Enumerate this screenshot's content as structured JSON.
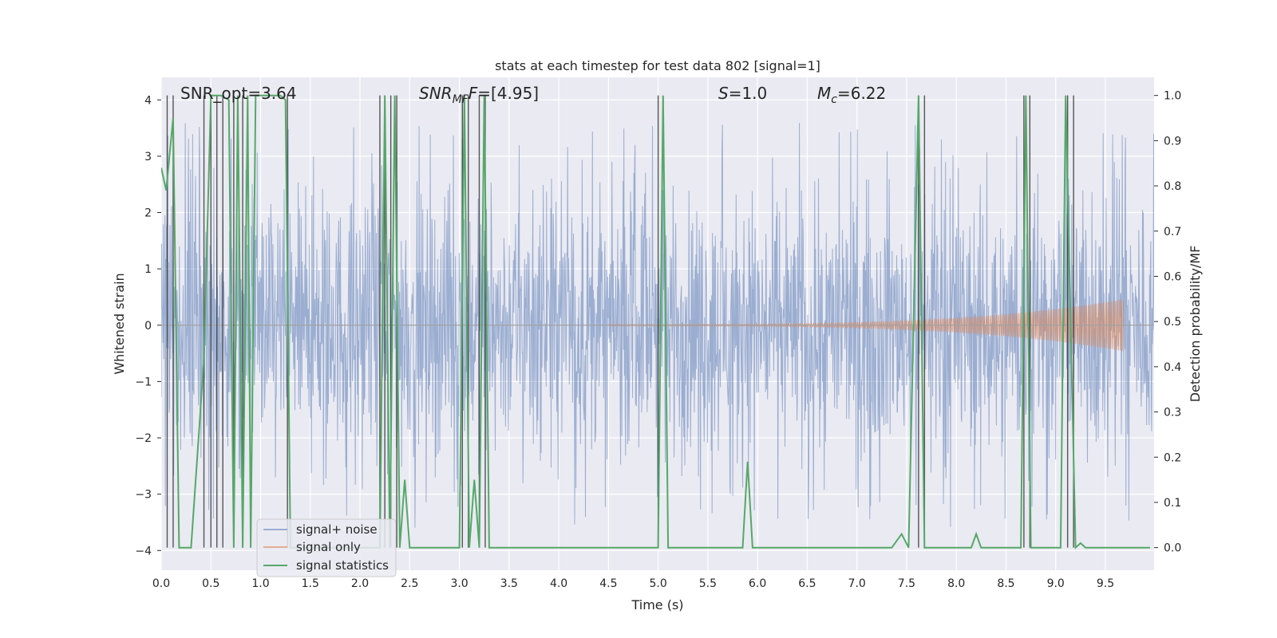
{
  "chart_data": {
    "type": "line",
    "title": "stats at each timestep for test data 802 [signal=1]",
    "xlabel": "Time (s)",
    "ylabel_left": "Whitened strain",
    "ylabel_right": "Detection probability/MF",
    "xlim": [
      0.0,
      9.99
    ],
    "ylim_left": [
      -4.35,
      4.4
    ],
    "ylim_right": [
      -0.05,
      1.04
    ],
    "xticks": [
      "0.0",
      "0.5",
      "1.0",
      "1.5",
      "2.0",
      "2.5",
      "3.0",
      "3.5",
      "4.0",
      "4.5",
      "5.0",
      "5.5",
      "6.0",
      "6.5",
      "7.0",
      "7.5",
      "8.0",
      "8.5",
      "9.0",
      "9.5"
    ],
    "yticks_left": [
      "4",
      "3",
      "2",
      "1",
      "0",
      "−1",
      "−2",
      "−3",
      "−4"
    ],
    "yticks_right": [
      "1.0",
      "0.9",
      "0.8",
      "0.7",
      "0.6",
      "0.5",
      "0.4",
      "0.3",
      "0.2",
      "0.1",
      "0.0"
    ],
    "grid": true,
    "legend_position": "lower-left",
    "annotations": {
      "snr_opt": "SNR_opt=3.64",
      "snr_mf_sym": "SNR",
      "snr_mf_sub": "MF",
      "snr_mf_val": "=[4.95]",
      "s_sym": "S",
      "s_val": "=1.0",
      "mc_sym": "M",
      "mc_sub": "c",
      "mc_val": "=6.22"
    },
    "series": [
      {
        "name": "signal+ noise",
        "color": "#4c72b0",
        "amplitude_envelope": 2.2,
        "peak_range": [
          -3.9,
          3.6
        ]
      },
      {
        "name": "signal only",
        "color": "#dd8452",
        "chirp_start": 4.5,
        "chirp_end": 9.68,
        "peak_amplitude": 0.45
      },
      {
        "name": "signal statistics",
        "color": "#55a868",
        "x": [
          0.0,
          0.05,
          0.12,
          0.18,
          0.3,
          0.4,
          0.43,
          0.5,
          0.55,
          0.6,
          0.68,
          0.73,
          0.77,
          0.82,
          0.87,
          0.9,
          0.95,
          1.0,
          1.05,
          1.15,
          1.2,
          1.25,
          1.3,
          1.35,
          2.2,
          2.25,
          2.3,
          2.35,
          2.4,
          2.45,
          2.5,
          3.0,
          3.05,
          3.1,
          3.15,
          3.2,
          3.25,
          3.3,
          3.35,
          3.5,
          5.0,
          5.05,
          5.1,
          5.85,
          5.9,
          5.95,
          6.5,
          7.35,
          7.45,
          7.52,
          7.62,
          7.68,
          7.73,
          7.85,
          8.15,
          8.2,
          8.25,
          8.65,
          8.7,
          8.75,
          8.8,
          8.85,
          9.05,
          9.1,
          9.2,
          9.25,
          9.3,
          9.5,
          9.95
        ],
        "y": [
          0.84,
          0.79,
          0.95,
          0.0,
          0.0,
          0.32,
          0.42,
          1.0,
          1.0,
          1.0,
          0.99,
          0.0,
          1.0,
          0.0,
          1.0,
          0.0,
          1.0,
          1.0,
          1.0,
          1.0,
          1.0,
          0.99,
          0.0,
          0.0,
          0.0,
          1.0,
          0.0,
          1.0,
          0.0,
          0.15,
          0.0,
          0.0,
          1.0,
          0.0,
          0.15,
          0.0,
          1.0,
          0.0,
          0.0,
          0.0,
          0.0,
          1.0,
          0.0,
          0.0,
          0.19,
          0.0,
          0.0,
          0.0,
          0.03,
          0.0,
          1.0,
          0.0,
          0.0,
          0.0,
          0.0,
          0.03,
          0.0,
          0.0,
          1.0,
          0.0,
          0.0,
          0.0,
          0.0,
          1.0,
          0.0,
          0.01,
          0.0,
          0.0,
          0.0
        ]
      }
    ],
    "vertical_markers": [
      0.06,
      0.12,
      0.43,
      0.5,
      0.56,
      0.62,
      0.73,
      0.82,
      1.27,
      2.2,
      2.25,
      2.31,
      2.37,
      3.03,
      3.09,
      3.2,
      3.26,
      5.0,
      7.62,
      7.68,
      8.68,
      8.74,
      9.12,
      9.18
    ]
  }
}
